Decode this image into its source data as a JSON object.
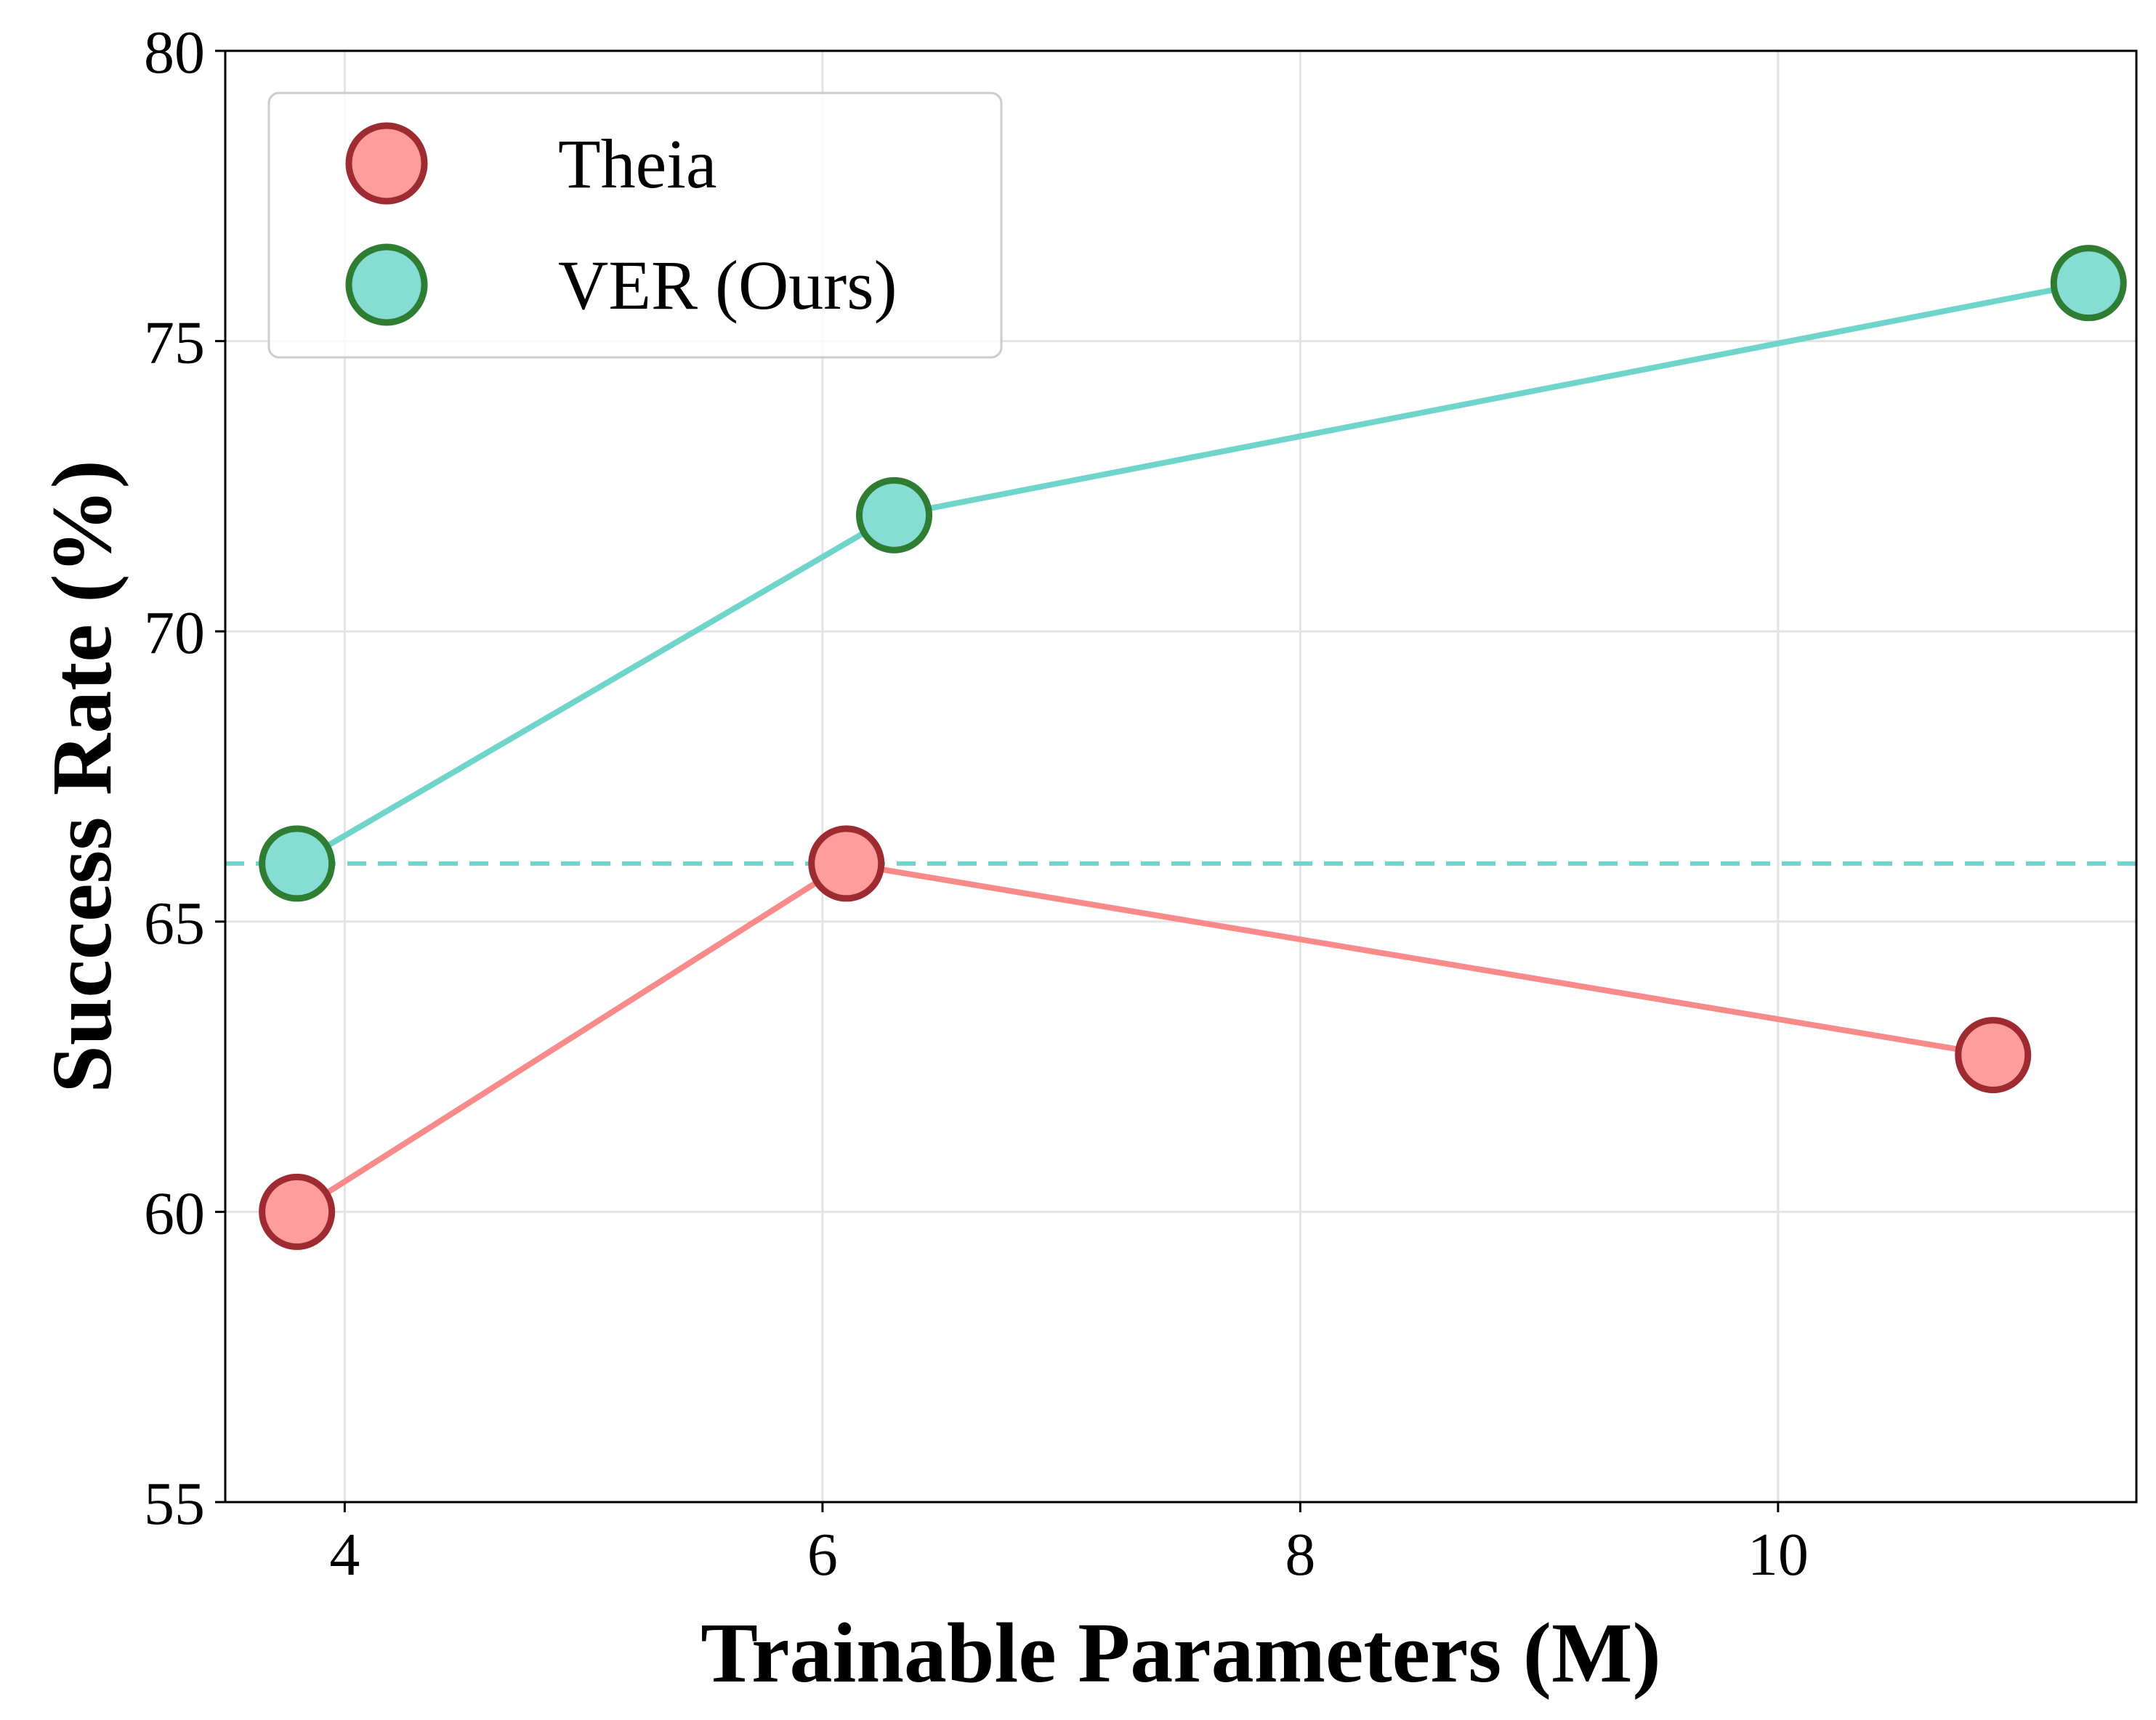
{
  "chart_data": {
    "type": "line",
    "xlabel": "Trainable Parameters (M)",
    "ylabel": "Success Rate (%)",
    "xlim": [
      3.5,
      11.5
    ],
    "ylim": [
      55,
      80
    ],
    "xticks": [
      4,
      6,
      8,
      10
    ],
    "yticks": [
      55,
      60,
      65,
      70,
      75,
      80
    ],
    "grid": true,
    "legend_position": "top-left",
    "series": [
      {
        "name": "Theia",
        "x": [
          3.8,
          6.1,
          10.9
        ],
        "y": [
          60,
          66,
          62.7
        ],
        "line_color": "#f98a8a",
        "marker_fill": "#ff9c9c",
        "marker_edge": "#9e2b32"
      },
      {
        "name": "VER (Ours)",
        "x": [
          3.8,
          6.3,
          11.3
        ],
        "y": [
          66,
          72,
          76
        ],
        "line_color": "#6fd5ca",
        "marker_fill": "#86ddd4",
        "marker_edge": "#2e7d32"
      }
    ],
    "reference_line": {
      "y": 66,
      "style": "dashed",
      "color": "#6fd5ca"
    }
  }
}
